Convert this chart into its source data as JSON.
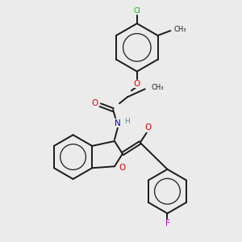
{
  "background_color": "#ebebeb",
  "bond_color": "#1a1a1a",
  "atom_colors": {
    "O": "#dd0000",
    "N": "#0000bb",
    "Cl": "#00bb00",
    "F": "#bb00bb",
    "H": "#4a9090"
  },
  "lw": 1.4,
  "ring_r": 0.3
}
